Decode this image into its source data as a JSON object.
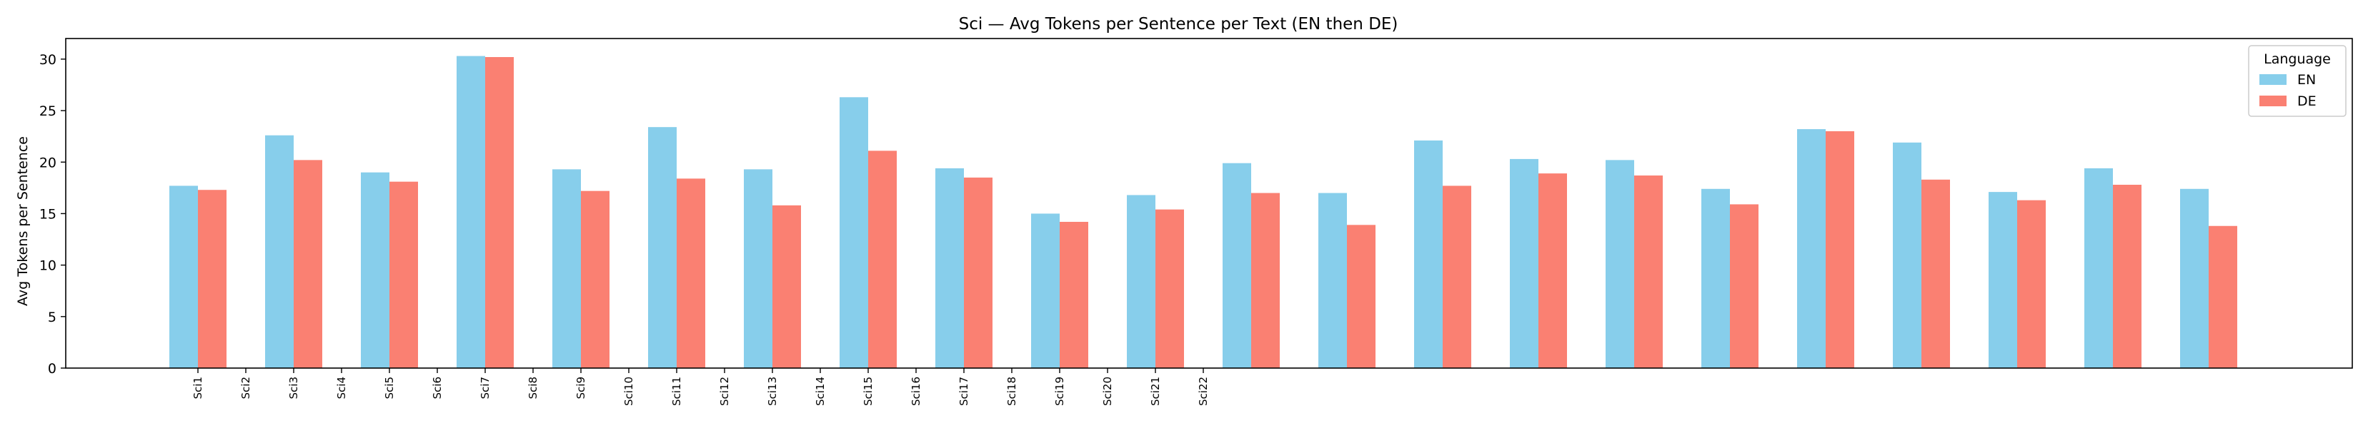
{
  "chart_data": {
    "type": "bar",
    "title": "Sci — Avg Tokens per Sentence per Text (EN then DE)",
    "xlabel": "",
    "ylabel": "Avg Tokens per Sentence",
    "ylim": [
      0,
      32
    ],
    "yticks": [
      0,
      5,
      10,
      15,
      20,
      25,
      30
    ],
    "grid": false,
    "legend": {
      "title": "Language",
      "position": "top-right"
    },
    "categories": [
      "Sci1",
      "Sci2",
      "Sci3",
      "Sci4",
      "Sci5",
      "Sci6",
      "Sci7",
      "Sci8",
      "Sci9",
      "Sci10",
      "Sci11",
      "Sci12",
      "Sci13",
      "Sci14",
      "Sci15",
      "Sci16",
      "Sci17",
      "Sci18",
      "Sci19",
      "Sci20",
      "Sci21",
      "Sci22"
    ],
    "series": [
      {
        "name": "EN",
        "color": "#87CEEB",
        "values": [
          17.7,
          22.6,
          19.0,
          30.3,
          19.3,
          23.4,
          19.3,
          26.3,
          19.4,
          15.0,
          16.8,
          19.9,
          17.0,
          22.1,
          20.3,
          20.2,
          17.4,
          23.2,
          21.9,
          17.1,
          19.4,
          17.4
        ]
      },
      {
        "name": "DE",
        "color": "#FA8072",
        "values": [
          17.3,
          20.2,
          18.1,
          30.2,
          17.2,
          18.4,
          15.8,
          21.1,
          18.5,
          14.2,
          15.4,
          17.0,
          13.9,
          17.7,
          18.9,
          18.7,
          15.9,
          23.0,
          18.3,
          16.3,
          17.8,
          13.8
        ]
      }
    ]
  }
}
